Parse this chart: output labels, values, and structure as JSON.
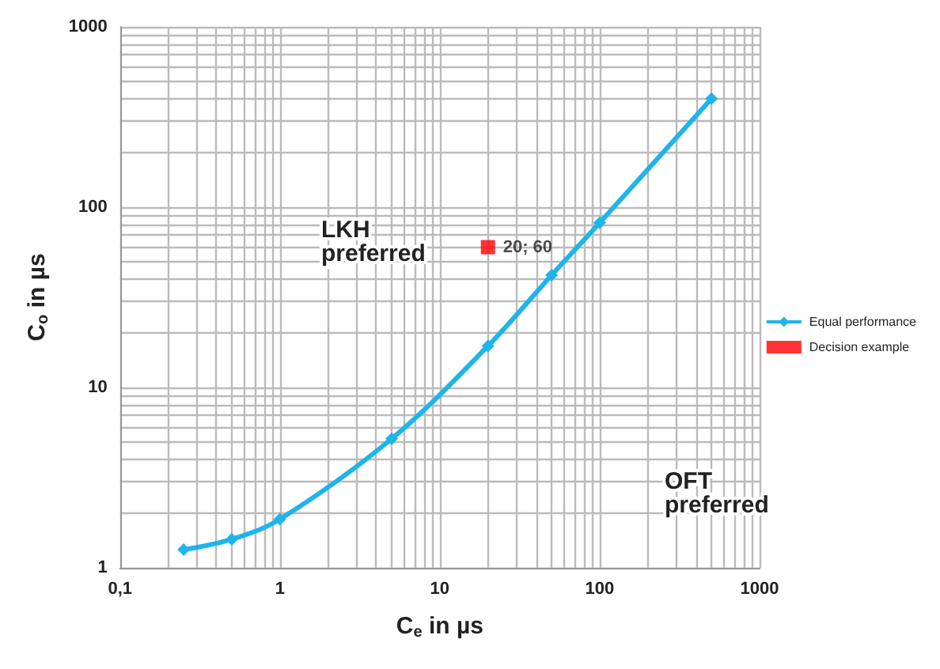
{
  "chart_data": {
    "type": "line",
    "xlabel": "C$_{e}$ in µs",
    "ylabel": "C$_{o}$ in µs",
    "log": "xy",
    "grid": true,
    "legend": "right",
    "xlim": [
      0.1,
      1000
    ],
    "xticks": [
      {
        "value": 0.1,
        "label": "0,1"
      },
      1,
      10,
      100,
      1000
    ],
    "ylim": [
      1,
      1000
    ],
    "yticks": [
      1,
      10,
      100,
      1000
    ],
    "annotations": [
      "LKH preferred",
      "OFT preferred"
    ],
    "series": [
      {
        "name": "Equal performance",
        "color": "#1fb4ea",
        "marker": "diamond",
        "x": [
          0.25,
          0.5,
          1,
          5,
          20,
          50,
          100,
          500
        ],
        "values": [
          1.26,
          1.44,
          1.86,
          5.2,
          17,
          42,
          82,
          400
        ]
      },
      {
        "name": "Decision example",
        "color": "#ff0000",
        "type": "scatter",
        "marker": "square",
        "x": [
          20
        ],
        "values": [
          60
        ],
        "value_labels": [
          "20; 60"
        ]
      }
    ]
  }
}
